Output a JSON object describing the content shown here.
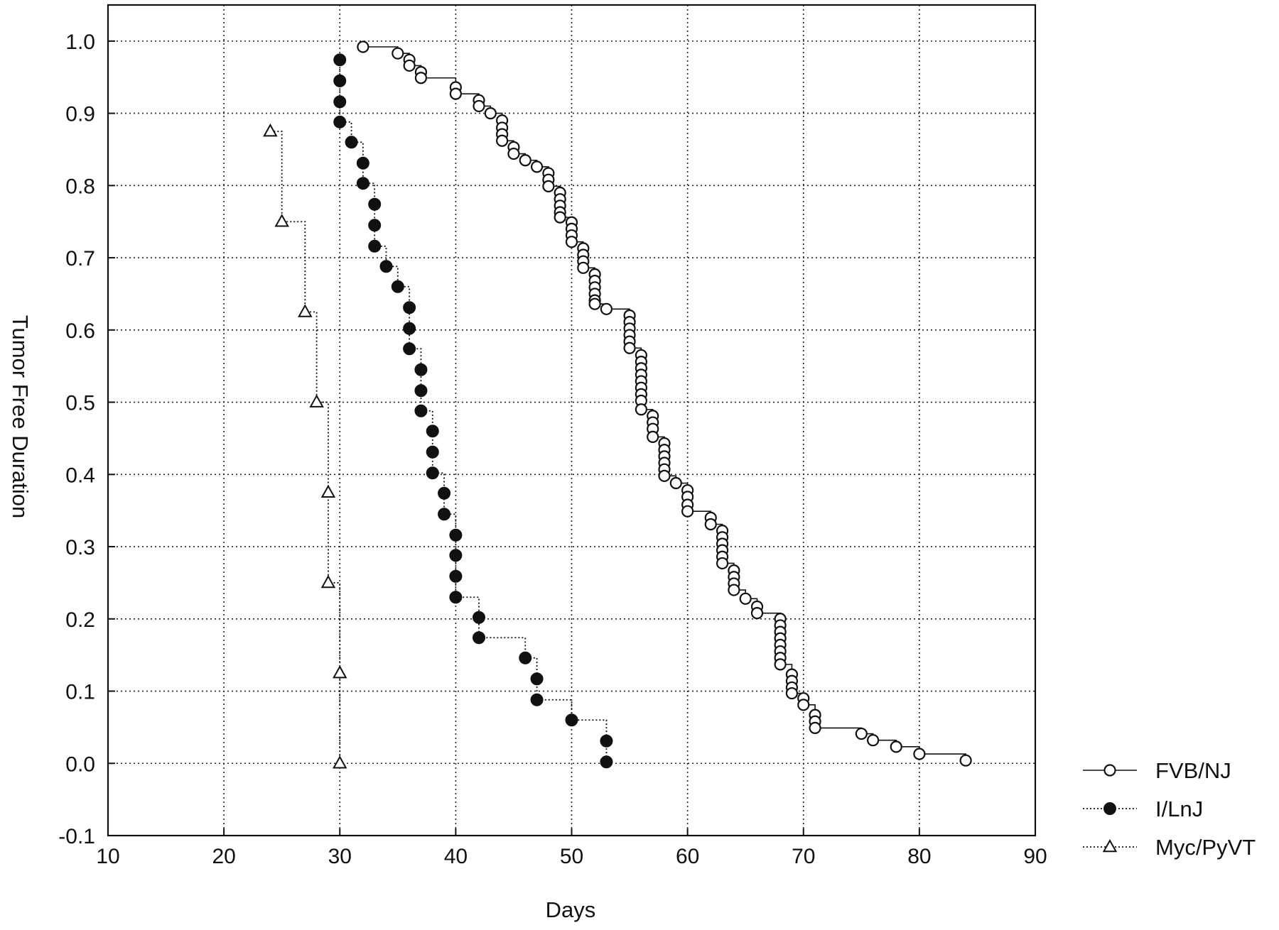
{
  "chart_data": {
    "type": "scatter",
    "title": "",
    "xlabel": "Days",
    "ylabel": "Tumor Free Duration",
    "xlim": [
      10,
      90
    ],
    "ylim": [
      -0.1,
      1.05
    ],
    "grid": true,
    "legend_position": "right",
    "x_ticks": [
      "10",
      "20",
      "30",
      "40",
      "50",
      "60",
      "70",
      "80",
      "90"
    ],
    "y_ticks": [
      "-0.1",
      "0.0",
      "0.1",
      "0.2",
      "0.3",
      "0.4",
      "0.5",
      "0.6",
      "0.7",
      "0.8",
      "0.9",
      "1.0"
    ],
    "series": [
      {
        "name": "FVB/NJ",
        "marker": "open-circle",
        "line": "solid",
        "points": [
          [
            32,
            0.992
          ],
          [
            35,
            0.983
          ],
          [
            36,
            0.974
          ],
          [
            36,
            0.966
          ],
          [
            37,
            0.957
          ],
          [
            37,
            0.949
          ],
          [
            40,
            0.936
          ],
          [
            40,
            0.927
          ],
          [
            42,
            0.918
          ],
          [
            42,
            0.91
          ],
          [
            43,
            0.9
          ],
          [
            44,
            0.89
          ],
          [
            44,
            0.88
          ],
          [
            44,
            0.871
          ],
          [
            44,
            0.862
          ],
          [
            45,
            0.853
          ],
          [
            45,
            0.844
          ],
          [
            46,
            0.835
          ],
          [
            47,
            0.826
          ],
          [
            48,
            0.817
          ],
          [
            48,
            0.808
          ],
          [
            48,
            0.799
          ],
          [
            49,
            0.79
          ],
          [
            49,
            0.781
          ],
          [
            49,
            0.772
          ],
          [
            49,
            0.763
          ],
          [
            49,
            0.756
          ],
          [
            50,
            0.749
          ],
          [
            50,
            0.74
          ],
          [
            50,
            0.731
          ],
          [
            50,
            0.722
          ],
          [
            51,
            0.713
          ],
          [
            51,
            0.704
          ],
          [
            51,
            0.695
          ],
          [
            51,
            0.686
          ],
          [
            52,
            0.677
          ],
          [
            52,
            0.668
          ],
          [
            52,
            0.659
          ],
          [
            52,
            0.65
          ],
          [
            52,
            0.641
          ],
          [
            52,
            0.636
          ],
          [
            53,
            0.629
          ],
          [
            55,
            0.62
          ],
          [
            55,
            0.611
          ],
          [
            55,
            0.602
          ],
          [
            55,
            0.593
          ],
          [
            55,
            0.584
          ],
          [
            55,
            0.575
          ],
          [
            56,
            0.565
          ],
          [
            56,
            0.556
          ],
          [
            56,
            0.547
          ],
          [
            56,
            0.538
          ],
          [
            56,
            0.529
          ],
          [
            56,
            0.52
          ],
          [
            56,
            0.511
          ],
          [
            56,
            0.502
          ],
          [
            56,
            0.49
          ],
          [
            57,
            0.481
          ],
          [
            57,
            0.472
          ],
          [
            57,
            0.463
          ],
          [
            57,
            0.452
          ],
          [
            58,
            0.443
          ],
          [
            58,
            0.434
          ],
          [
            58,
            0.425
          ],
          [
            58,
            0.416
          ],
          [
            58,
            0.407
          ],
          [
            58,
            0.398
          ],
          [
            59,
            0.388
          ],
          [
            60,
            0.378
          ],
          [
            60,
            0.369
          ],
          [
            60,
            0.358
          ],
          [
            60,
            0.349
          ],
          [
            62,
            0.34
          ],
          [
            62,
            0.331
          ],
          [
            63,
            0.322
          ],
          [
            63,
            0.313
          ],
          [
            63,
            0.304
          ],
          [
            63,
            0.295
          ],
          [
            63,
            0.286
          ],
          [
            63,
            0.277
          ],
          [
            64,
            0.267
          ],
          [
            64,
            0.258
          ],
          [
            64,
            0.249
          ],
          [
            64,
            0.24
          ],
          [
            65,
            0.228
          ],
          [
            66,
            0.217
          ],
          [
            66,
            0.208
          ],
          [
            68,
            0.2
          ],
          [
            68,
            0.191
          ],
          [
            68,
            0.182
          ],
          [
            68,
            0.173
          ],
          [
            68,
            0.164
          ],
          [
            68,
            0.155
          ],
          [
            68,
            0.146
          ],
          [
            68,
            0.137
          ],
          [
            69,
            0.123
          ],
          [
            69,
            0.114
          ],
          [
            69,
            0.105
          ],
          [
            69,
            0.097
          ],
          [
            70,
            0.09
          ],
          [
            70,
            0.081
          ],
          [
            71,
            0.067
          ],
          [
            71,
            0.058
          ],
          [
            71,
            0.049
          ],
          [
            75,
            0.041
          ],
          [
            76,
            0.032
          ],
          [
            78,
            0.023
          ],
          [
            80,
            0.013
          ],
          [
            84,
            0.004
          ]
        ]
      },
      {
        "name": "I/LnJ",
        "marker": "filled-circle",
        "line": "dotted",
        "points": [
          [
            30,
            0.974
          ],
          [
            30,
            0.945
          ],
          [
            30,
            0.916
          ],
          [
            30,
            0.888
          ],
          [
            31,
            0.86
          ],
          [
            32,
            0.831
          ],
          [
            32,
            0.803
          ],
          [
            33,
            0.774
          ],
          [
            33,
            0.745
          ],
          [
            33,
            0.716
          ],
          [
            34,
            0.688
          ],
          [
            35,
            0.66
          ],
          [
            36,
            0.631
          ],
          [
            36,
            0.602
          ],
          [
            36,
            0.574
          ],
          [
            37,
            0.545
          ],
          [
            37,
            0.516
          ],
          [
            37,
            0.488
          ],
          [
            38,
            0.46
          ],
          [
            38,
            0.431
          ],
          [
            38,
            0.402
          ],
          [
            39,
            0.374
          ],
          [
            39,
            0.345
          ],
          [
            40,
            0.316
          ],
          [
            40,
            0.288
          ],
          [
            40,
            0.259
          ],
          [
            40,
            0.23
          ],
          [
            42,
            0.202
          ],
          [
            42,
            0.174
          ],
          [
            46,
            0.146
          ],
          [
            47,
            0.117
          ],
          [
            47,
            0.088
          ],
          [
            50,
            0.06
          ],
          [
            53,
            0.031
          ],
          [
            53,
            0.002
          ]
        ]
      },
      {
        "name": "Myc/PyVT",
        "marker": "open-triangle",
        "line": "dotted",
        "points": [
          [
            24,
            0.875
          ],
          [
            25,
            0.75
          ],
          [
            27,
            0.625
          ],
          [
            28,
            0.5
          ],
          [
            29,
            0.375
          ],
          [
            29,
            0.25
          ],
          [
            30,
            0.125
          ],
          [
            30,
            0.0
          ]
        ]
      }
    ]
  }
}
